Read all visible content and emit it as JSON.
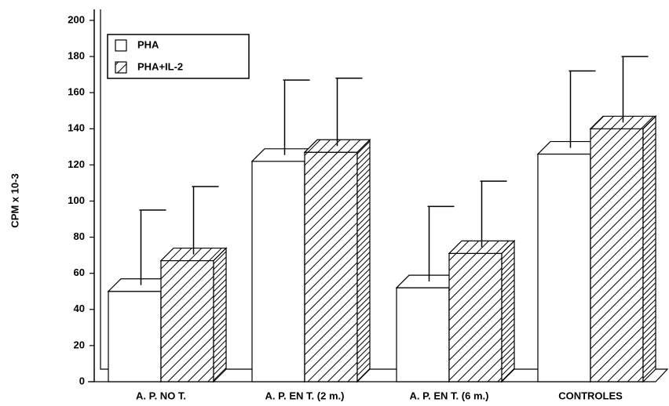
{
  "chart_data": {
    "type": "bar3d",
    "y_label": "CPM x 10-3",
    "categories": [
      "A. P. NO T.",
      "A. P. EN T. (2 m.)",
      "A. P. EN T. (6 m.)",
      "CONTROLES"
    ],
    "series": [
      {
        "name": "PHA",
        "color": "#ffffff",
        "values": [
          50,
          122,
          52,
          126
        ],
        "errors": [
          45,
          45,
          45,
          46
        ]
      },
      {
        "name": "PHA+IL-2",
        "color": "hatched",
        "values": [
          67,
          127,
          71,
          140
        ],
        "errors": [
          41,
          41,
          40,
          40
        ]
      }
    ],
    "ylim": [
      0,
      200
    ],
    "yticks": [
      0,
      20,
      40,
      60,
      80,
      100,
      120,
      140,
      160,
      180,
      200
    ],
    "legend": "upper left"
  }
}
